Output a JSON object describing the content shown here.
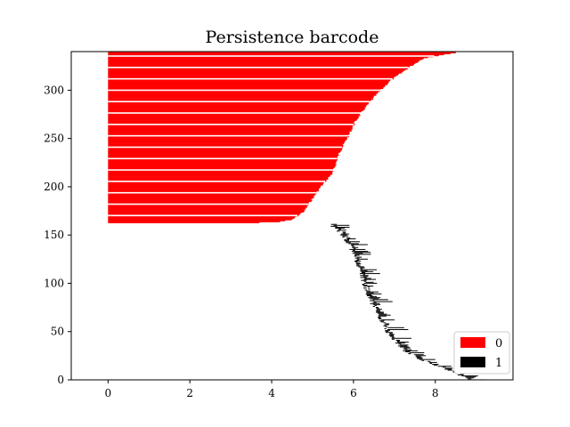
{
  "chart_data": {
    "type": "bar",
    "orientation": "horizontal",
    "title": "Persistence barcode",
    "xlabel": "",
    "ylabel": "",
    "xlim": [
      -0.9,
      9.9
    ],
    "ylim": [
      0,
      340
    ],
    "xticks": [
      0,
      2,
      4,
      6,
      8
    ],
    "xtick_labels": [
      "0",
      "2",
      "4",
      "6",
      "8"
    ],
    "yticks": [
      0,
      50,
      100,
      150,
      200,
      250,
      300
    ],
    "ytick_labels": [
      "0",
      "50",
      "100",
      "150",
      "200",
      "250",
      "300"
    ],
    "grid": false,
    "legend": {
      "placement": "lower-right",
      "entries": [
        "0",
        "1"
      ]
    },
    "series": [
      {
        "name": "0",
        "color": "#ff0000",
        "description": "dimension-0 bars: birth 0, death rising from ~3.7 to ~8.5; one bar per index",
        "y_start": 163,
        "count": 177,
        "death_profile": [
          [
            163,
            3.7
          ],
          [
            164,
            4.2
          ],
          [
            166,
            4.5
          ],
          [
            175,
            4.8
          ],
          [
            185,
            4.95
          ],
          [
            200,
            5.2
          ],
          [
            215,
            5.5
          ],
          [
            235,
            5.65
          ],
          [
            255,
            5.9
          ],
          [
            268,
            6.05
          ],
          [
            280,
            6.25
          ],
          [
            295,
            6.55
          ],
          [
            310,
            6.9
          ],
          [
            325,
            7.4
          ],
          [
            333,
            7.7
          ],
          [
            337,
            8.2
          ],
          [
            339,
            8.5
          ]
        ]
      },
      {
        "name": "1",
        "color": "#000000",
        "description": "dimension-1 bars: short intervals; birth rises from ~5.4 to ~8.9 as index drops",
        "y_start": 0,
        "count": 162,
        "birth_profile": [
          [
            0,
            8.85
          ],
          [
            5,
            8.6
          ],
          [
            12,
            8.2
          ],
          [
            20,
            7.7
          ],
          [
            30,
            7.25
          ],
          [
            45,
            6.9
          ],
          [
            60,
            6.7
          ],
          [
            80,
            6.45
          ],
          [
            100,
            6.25
          ],
          [
            120,
            6.1
          ],
          [
            140,
            5.9
          ],
          [
            152,
            5.7
          ],
          [
            162,
            5.4
          ]
        ],
        "length_range": [
          0.05,
          0.6
        ]
      }
    ]
  }
}
